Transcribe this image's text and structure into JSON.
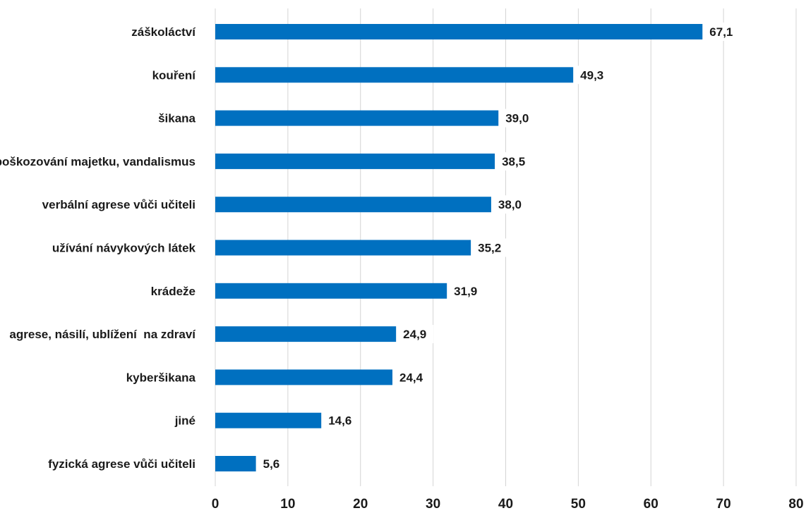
{
  "chart_data": {
    "type": "bar",
    "orientation": "horizontal",
    "categories": [
      "záškoláctví",
      "kouření",
      "šikana",
      "poškozování majetku, vandalismus",
      "verbální agrese vůči učiteli",
      "užívání návykových látek",
      "krádeže",
      "agrese, násilí, ublížení  na zdraví",
      "kyberšikana",
      "jiné",
      "fyzická agrese vůči učiteli"
    ],
    "values": [
      67.1,
      49.3,
      39.0,
      38.5,
      38.0,
      35.2,
      31.9,
      24.9,
      24.4,
      14.6,
      5.6
    ],
    "value_labels": [
      "67,1",
      "49,3",
      "39,0",
      "38,5",
      "38,0",
      "35,2",
      "31,9",
      "24,9",
      "24,4",
      "14,6",
      "5,6"
    ],
    "xlim": [
      0,
      80
    ],
    "xticks": [
      "0",
      "10",
      "20",
      "30",
      "40",
      "50",
      "60",
      "70",
      "80"
    ],
    "grid": true,
    "bar_color": "#0070c0",
    "grid_color": "#d4d4d4",
    "title": "",
    "xlabel": "",
    "ylabel": ""
  }
}
